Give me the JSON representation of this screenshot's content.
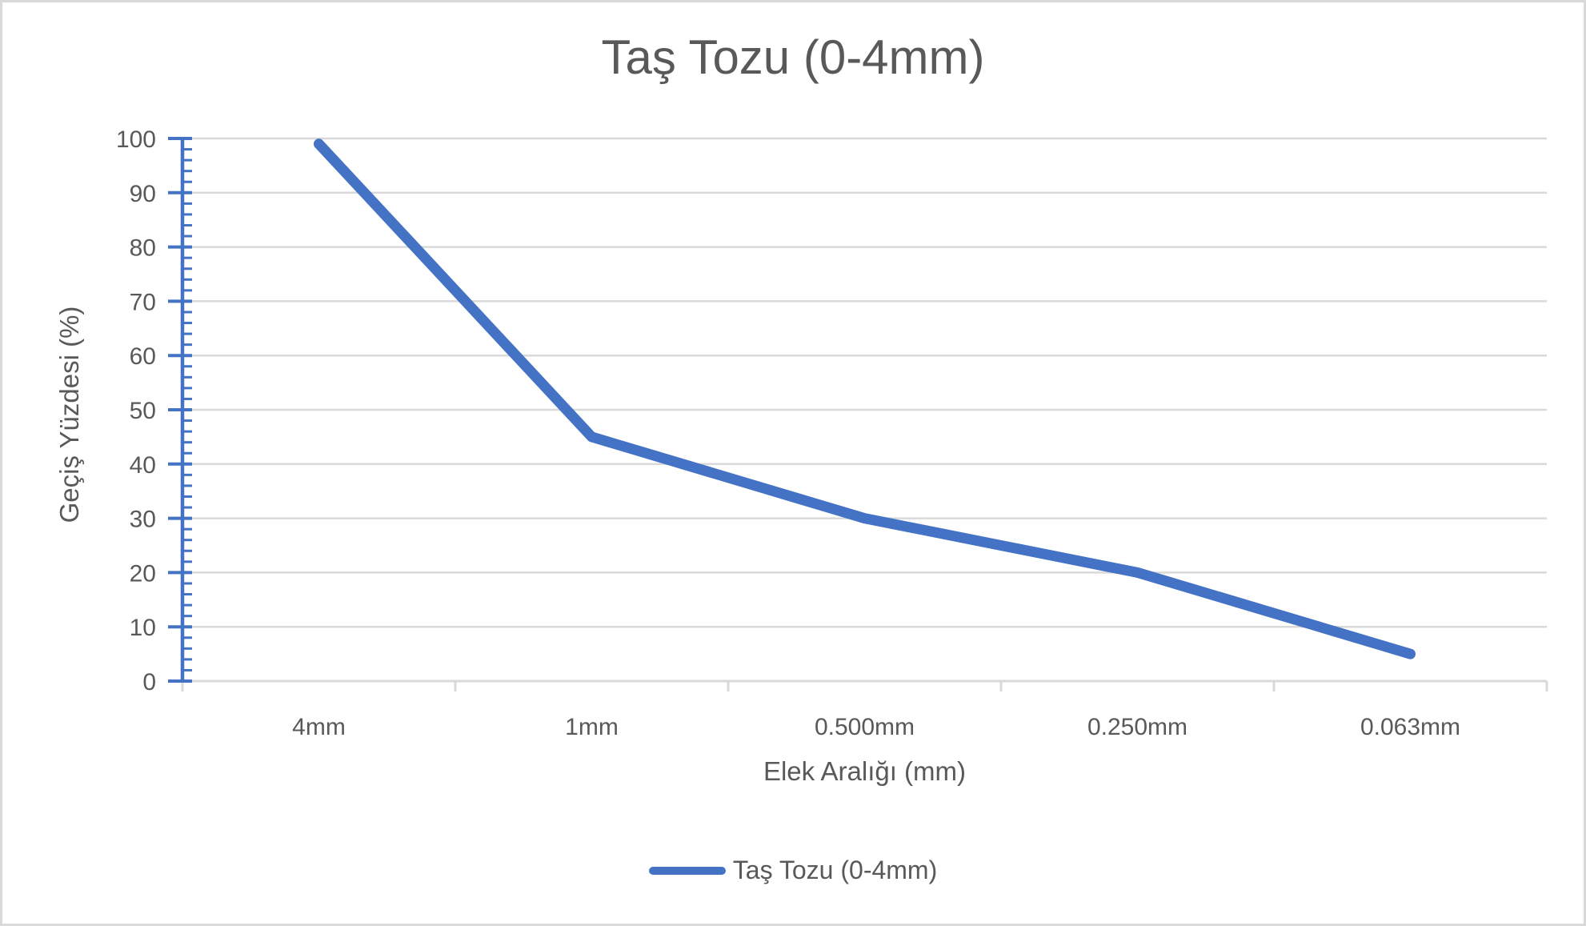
{
  "chart_data": {
    "type": "line",
    "title": "Taş Tozu (0-4mm)",
    "xlabel": "Elek Aralığı (mm)",
    "ylabel": "Geçiş Yüzdesi (%)",
    "categories": [
      "4mm",
      "1mm",
      "0.500mm",
      "0.250mm",
      "0.063mm"
    ],
    "series": [
      {
        "name": "Taş Tozu (0-4mm)",
        "values": [
          99,
          45,
          30,
          20,
          5
        ]
      }
    ],
    "ylim": [
      0,
      100
    ],
    "y_major_unit": 10,
    "y_minor_unit": 2,
    "y_tick_labels": [
      "0",
      "10",
      "20",
      "30",
      "40",
      "50",
      "60",
      "70",
      "80",
      "90",
      "100"
    ],
    "grid": "horizontal-major",
    "legend_position": "bottom",
    "colors": {
      "series": "#4472C4",
      "text": "#595959",
      "gridline": "#D9D9D9",
      "axis": "#D9D9D9"
    }
  }
}
